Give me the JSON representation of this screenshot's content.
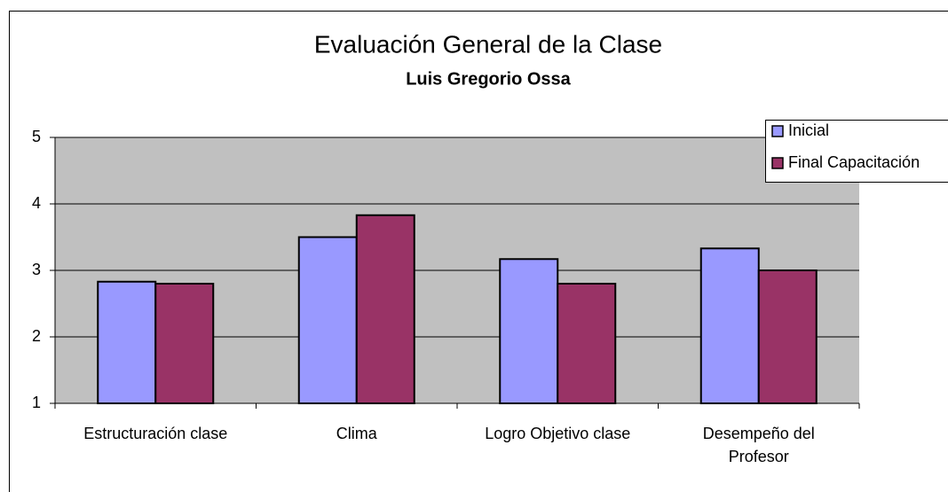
{
  "chart_data": {
    "type": "bar",
    "title": "Evaluación General de la Clase",
    "subtitle": "Luis Gregorio Ossa",
    "categories": [
      "Estructuración clase",
      "Clima",
      "Logro Objetivo clase",
      "Desempeño del Profesor"
    ],
    "series": [
      {
        "name": "Inicial",
        "color": "#9999ff",
        "values": [
          2.83,
          3.5,
          3.17,
          3.33
        ]
      },
      {
        "name": "Final Capacitación",
        "color": "#993366",
        "values": [
          2.8,
          3.83,
          2.8,
          3.0
        ]
      }
    ],
    "ylim": [
      1,
      5
    ],
    "yticks": [
      1,
      2,
      3,
      4,
      5
    ],
    "grid": true,
    "legend": "right"
  }
}
